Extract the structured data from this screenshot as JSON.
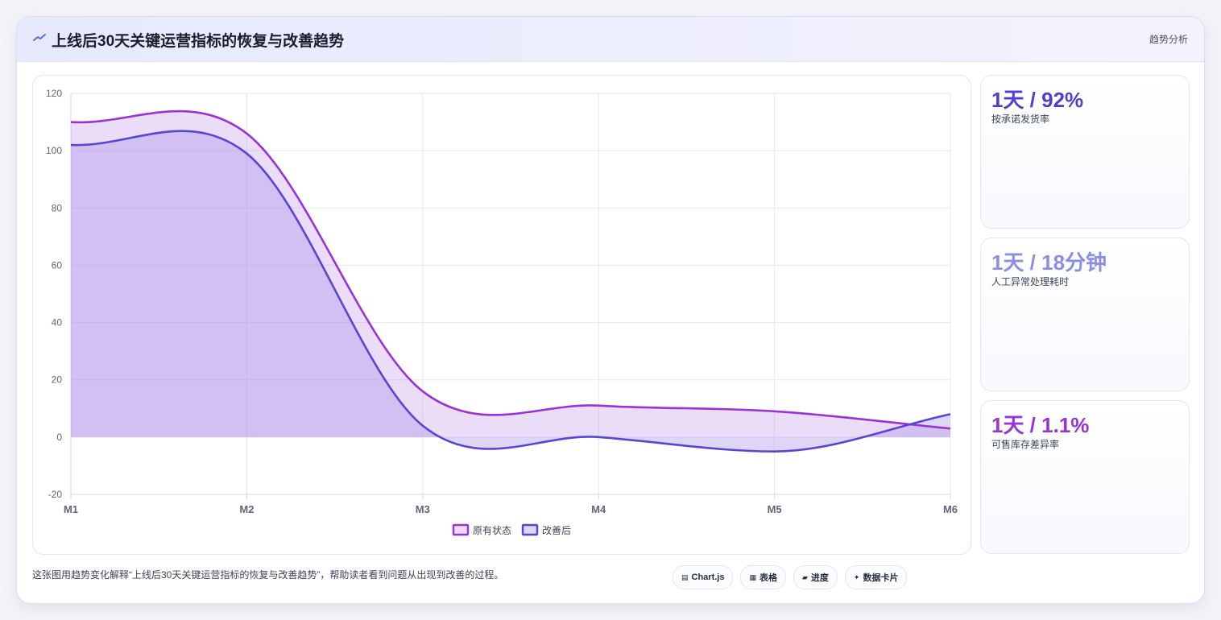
{
  "header": {
    "title": "上线后30天关键运营指标的恢复与改善趋势",
    "tag": "趋势分析"
  },
  "kpis": [
    {
      "value": "1天 / 92%",
      "label": "按承诺发货率",
      "color": "#4f3fd0"
    },
    {
      "value": "1天 / 18分钟",
      "label": "人工异常处理耗时",
      "color": "#8a8fe6"
    },
    {
      "value": "1天 / 1.1%",
      "label": "可售库存差异率",
      "color": "#9a33d6"
    }
  ],
  "footer": {
    "text": "这张图用趋势变化解释“上线后30天关键运营指标的恢复与改善趋势”，帮助读者看到问题从出现到改善的过程。"
  },
  "chips": [
    {
      "icon": "chart-icon",
      "glyph": "▤",
      "label": "Chart.js"
    },
    {
      "icon": "table-icon",
      "glyph": "▦",
      "label": "表格"
    },
    {
      "icon": "progress-icon",
      "glyph": "▰",
      "label": "进度"
    },
    {
      "icon": "sparkle-icon",
      "glyph": "✦",
      "label": "数据卡片"
    }
  ],
  "chart_data": {
    "type": "area",
    "categories": [
      "M1",
      "M2",
      "M3",
      "M4",
      "M5",
      "M6"
    ],
    "ylim": [
      -20,
      120
    ],
    "yticks": [
      -20,
      0,
      20,
      40,
      60,
      80,
      100,
      120
    ],
    "grid": true,
    "legend_position": "bottom",
    "series": [
      {
        "name": "原有状态",
        "values": [
          110,
          106,
          16,
          11,
          9,
          3
        ],
        "color": "#9a33d6",
        "fill": "rgba(190,140,230,0.30)"
      },
      {
        "name": "改善后",
        "values": [
          102,
          99,
          4,
          0,
          -5,
          8
        ],
        "color": "#5546d4",
        "fill": "rgba(175,150,235,0.40)"
      }
    ]
  }
}
